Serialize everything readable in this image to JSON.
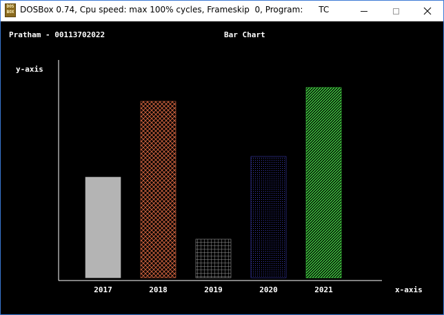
{
  "window": {
    "title": "DOSBox 0.74, Cpu speed: max 100% cycles, Frameskip  0, Program:      TC",
    "icon_text": [
      "DOS",
      "BOX"
    ],
    "icons": {
      "minimize": "minimize-icon",
      "maximize": "maximize-icon",
      "close": "close-icon"
    }
  },
  "screen": {
    "author": "Pratham - 00113702022",
    "title": "Bar Chart",
    "y_axis_label": "y-axis",
    "x_axis_label": "x-axis"
  },
  "chart_data": {
    "type": "bar",
    "title": "Bar Chart",
    "xlabel": "x-axis",
    "ylabel": "y-axis",
    "categories": [
      "2017",
      "2018",
      "2019",
      "2020",
      "2021"
    ],
    "values": [
      146,
      256,
      56,
      176,
      276
    ],
    "ylim": [
      0,
      320
    ],
    "grid": false,
    "colors": [
      "#b4b4b4",
      "#c8603c",
      "#9a9a9a",
      "#3c3cb4",
      "#44d844"
    ],
    "fill_patterns": [
      "solid",
      "crosshatch",
      "grid",
      "dots",
      "diagonal"
    ]
  }
}
